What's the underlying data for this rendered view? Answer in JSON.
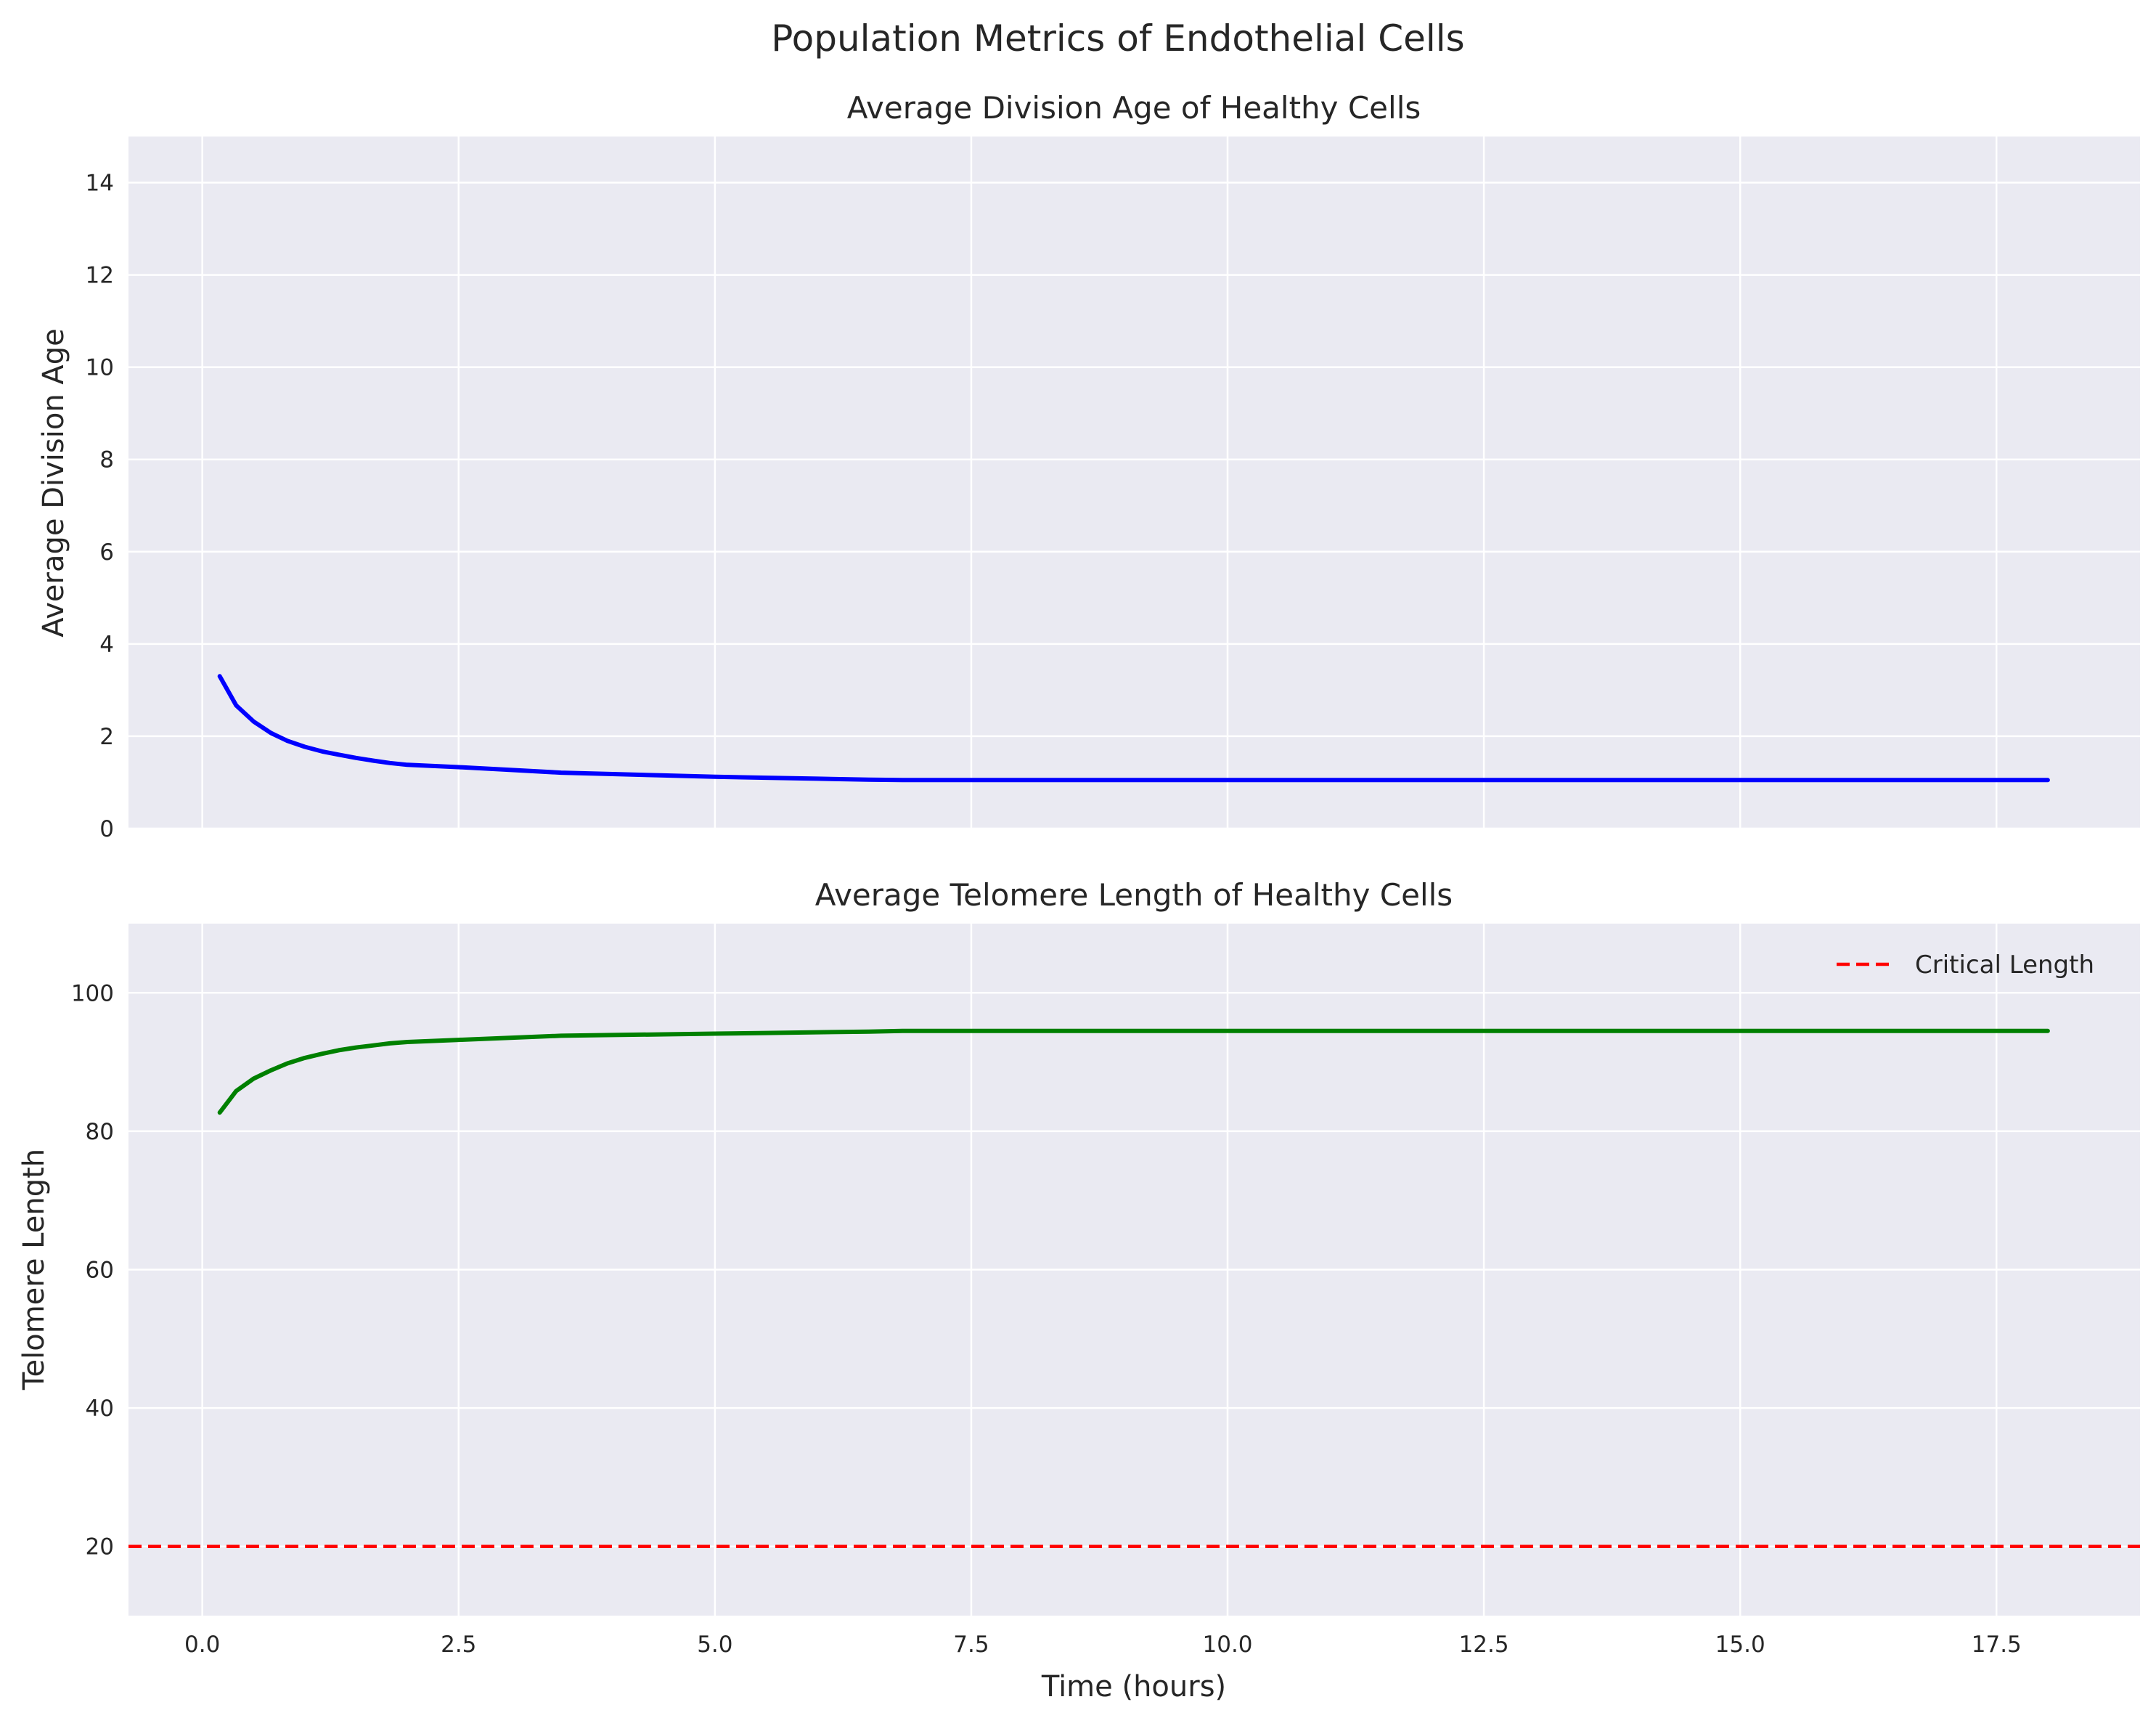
{
  "figure_title": "Population Metrics of Endothelial Cells",
  "chart_data": [
    {
      "type": "line",
      "title": "Average Division Age of Healthy Cells",
      "xlabel": "",
      "ylabel": "Average Division Age",
      "xlim": [
        -0.72,
        18.9
      ],
      "ylim": [
        0,
        15
      ],
      "x_ticks": [
        0.0,
        2.5,
        5.0,
        7.5,
        10.0,
        12.5,
        15.0,
        17.5
      ],
      "x_tick_labels_visible": false,
      "y_ticks": [
        0,
        2,
        4,
        6,
        8,
        10,
        12,
        14
      ],
      "y_tick_labels": [
        "0",
        "2",
        "4",
        "6",
        "8",
        "10",
        "12",
        "14"
      ],
      "grid": true,
      "series": [
        {
          "color": "#0000ff",
          "style": "solid",
          "x": [
            0.17,
            0.33,
            0.5,
            0.67,
            0.83,
            1.0,
            1.17,
            1.33,
            1.5,
            1.67,
            1.83,
            2.0,
            2.5,
            3.0,
            3.5,
            4.0,
            4.5,
            5.0,
            5.5,
            6.0,
            6.5,
            6.83,
            7.5,
            10.0,
            12.5,
            15.0,
            18.0
          ],
          "y": [
            3.3,
            2.67,
            2.32,
            2.07,
            1.9,
            1.77,
            1.67,
            1.6,
            1.53,
            1.47,
            1.42,
            1.38,
            1.33,
            1.27,
            1.21,
            1.18,
            1.15,
            1.12,
            1.1,
            1.08,
            1.06,
            1.05,
            1.05,
            1.05,
            1.05,
            1.05,
            1.05
          ]
        }
      ]
    },
    {
      "type": "line",
      "title": "Average Telomere Length of Healthy Cells",
      "xlabel": "Time (hours)",
      "ylabel": "Telomere Length",
      "xlim": [
        -0.72,
        18.9
      ],
      "ylim": [
        10,
        110
      ],
      "x_ticks": [
        0.0,
        2.5,
        5.0,
        7.5,
        10.0,
        12.5,
        15.0,
        17.5
      ],
      "x_tick_labels": [
        "0.0",
        "2.5",
        "5.0",
        "7.5",
        "10.0",
        "12.5",
        "15.0",
        "17.5"
      ],
      "y_ticks": [
        20,
        40,
        60,
        80,
        100
      ],
      "y_tick_labels": [
        "20",
        "40",
        "60",
        "80",
        "100"
      ],
      "grid": true,
      "legend": {
        "placement": "top-right",
        "entries": [
          "Critical Length"
        ]
      },
      "series": [
        {
          "color": "#008000",
          "style": "solid",
          "x": [
            0.17,
            0.33,
            0.5,
            0.67,
            0.83,
            1.0,
            1.17,
            1.33,
            1.5,
            1.67,
            1.83,
            2.0,
            2.5,
            3.0,
            3.5,
            4.0,
            4.5,
            5.0,
            5.5,
            6.0,
            6.5,
            6.83,
            7.5,
            10.0,
            12.5,
            15.0,
            18.0
          ],
          "y": [
            82.7,
            85.8,
            87.6,
            88.8,
            89.8,
            90.6,
            91.2,
            91.7,
            92.1,
            92.4,
            92.7,
            92.9,
            93.2,
            93.5,
            93.8,
            93.9,
            94.0,
            94.1,
            94.2,
            94.3,
            94.4,
            94.5,
            94.5,
            94.5,
            94.5,
            94.5,
            94.5
          ]
        },
        {
          "name": "Critical Length",
          "color": "#ff0000",
          "style": "dashed",
          "hline": 20
        }
      ]
    }
  ]
}
